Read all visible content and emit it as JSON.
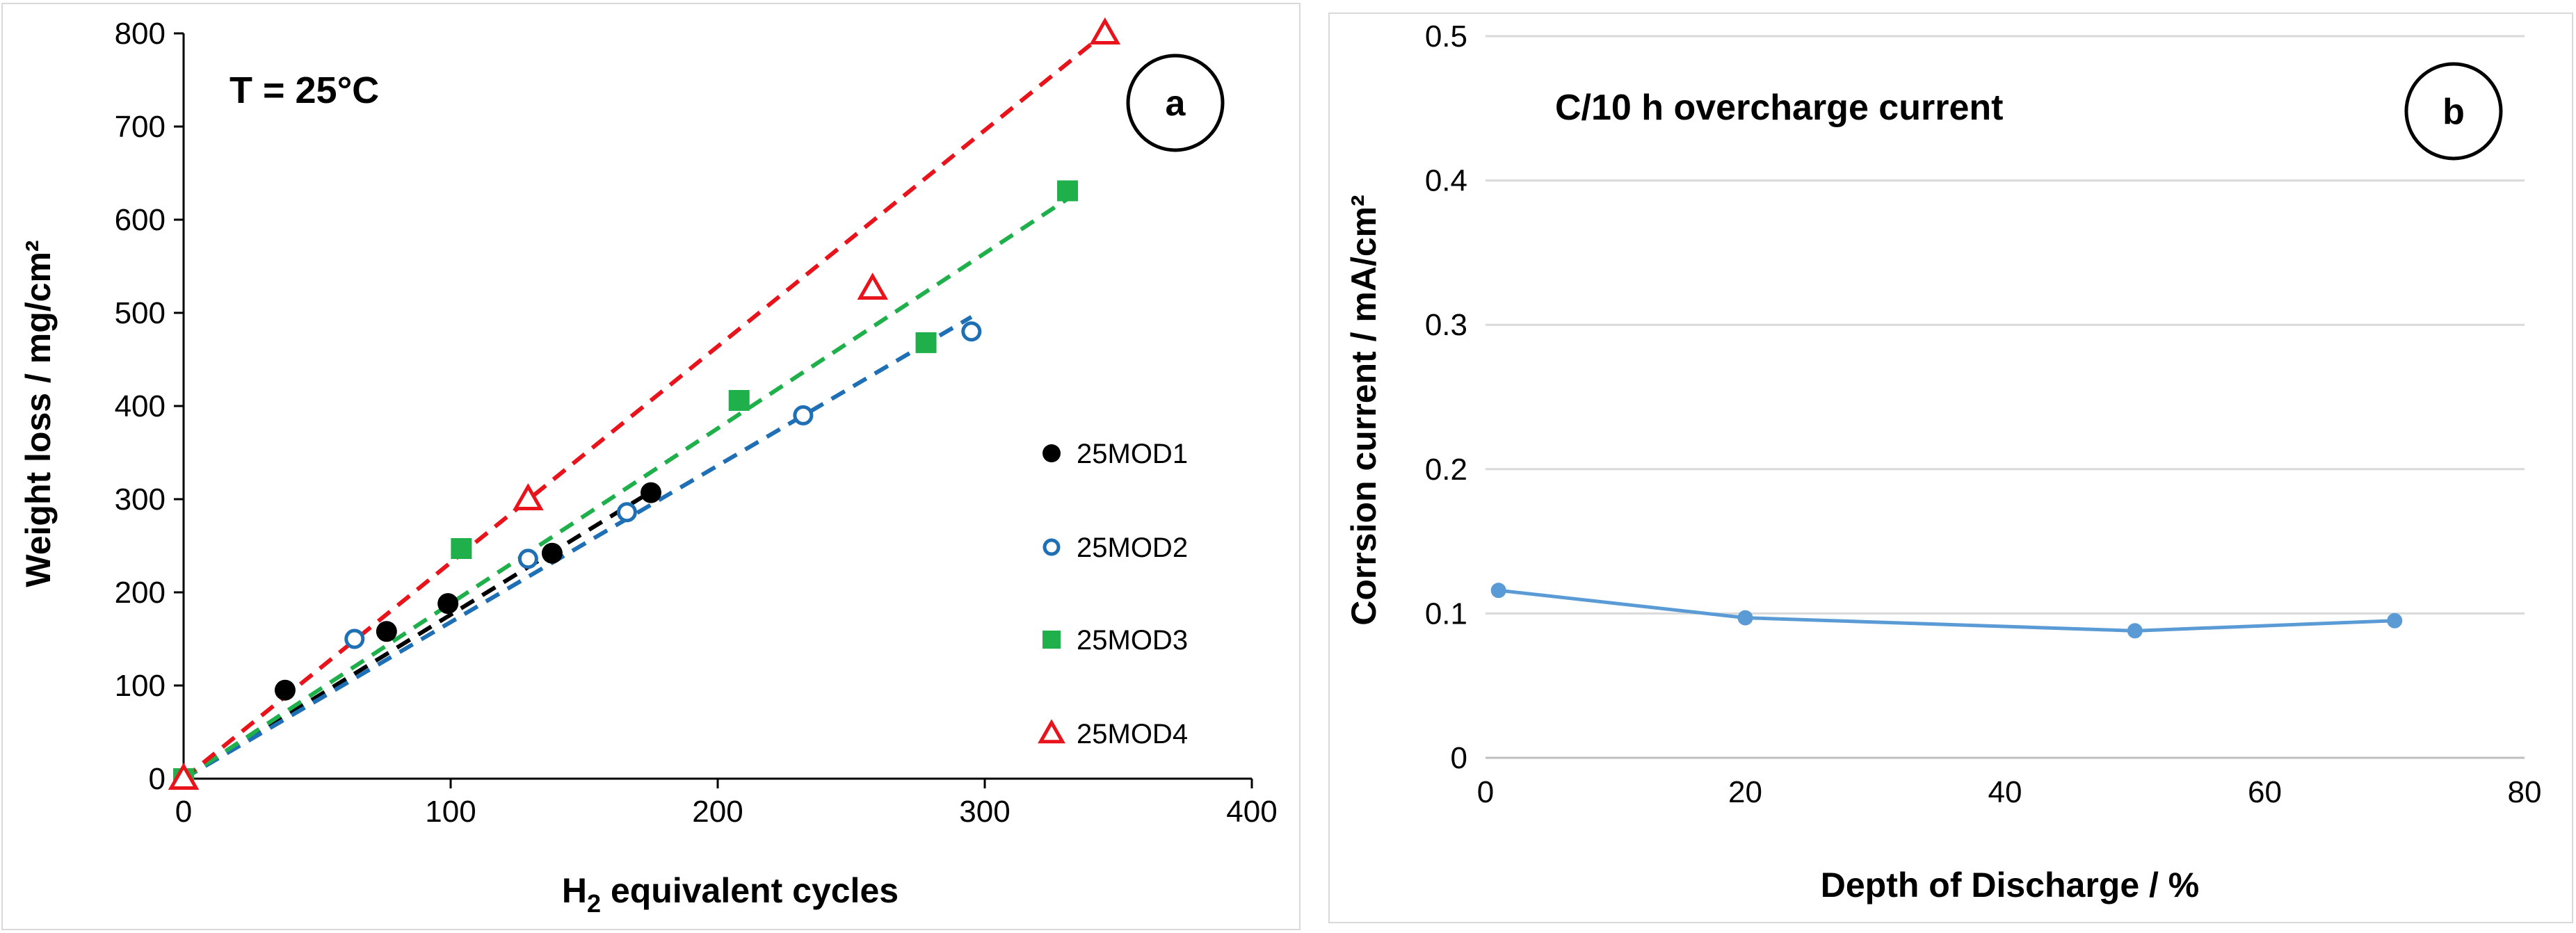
{
  "chart_data": [
    {
      "type": "scatter",
      "panel_label": "a",
      "annotation": "T = 25°C",
      "xlabel_main": "H",
      "xlabel_sub": "2",
      "xlabel_rest": " equivalent cycles",
      "ylabel": "Weight loss / mg/cm²",
      "xlim": [
        0,
        400
      ],
      "ylim": [
        0,
        800
      ],
      "xticks": [
        0,
        100,
        200,
        300,
        400
      ],
      "yticks": [
        0,
        100,
        200,
        300,
        400,
        500,
        600,
        700,
        800
      ],
      "legend_position": "right",
      "series": [
        {
          "name": "25MOD1",
          "marker": "filled-circle",
          "color": "#000000",
          "points": [
            [
              0,
              0
            ],
            [
              38,
              95
            ],
            [
              76,
              158
            ],
            [
              99,
              188
            ],
            [
              138,
              242
            ],
            [
              175,
              307
            ]
          ],
          "trend": {
            "x_end": 175,
            "slope": 1.76
          }
        },
        {
          "name": "25MOD2",
          "marker": "open-circle",
          "color": "#1f6fb5",
          "points": [
            [
              0,
              0
            ],
            [
              64,
              150
            ],
            [
              129,
              236
            ],
            [
              166,
              286
            ],
            [
              232,
              390
            ],
            [
              295,
              480
            ]
          ],
          "trend": {
            "x_end": 295,
            "slope": 1.68
          }
        },
        {
          "name": "25MOD3",
          "marker": "filled-square",
          "color": "#1fb04c",
          "points": [
            [
              0,
              0
            ],
            [
              104,
              247
            ],
            [
              208,
              406
            ],
            [
              278,
              468
            ],
            [
              331,
              631
            ]
          ],
          "trend": {
            "x_end": 331,
            "slope": 1.88
          }
        },
        {
          "name": "25MOD4",
          "marker": "open-triangle",
          "color": "#e8131b",
          "points": [
            [
              0,
              0
            ],
            [
              129,
              300
            ],
            [
              258,
              526
            ],
            [
              345,
              800
            ]
          ],
          "trend": {
            "x_end": 345,
            "slope": 2.32
          }
        }
      ]
    },
    {
      "type": "line",
      "panel_label": "b",
      "annotation": "C/10 h overcharge current",
      "xlabel": "Depth of Discharge / %",
      "ylabel": "Corrsion current / mA/cm²",
      "xlim": [
        0,
        80
      ],
      "ylim": [
        0,
        0.5
      ],
      "xticks": [
        0,
        20,
        40,
        60,
        80
      ],
      "yticks": [
        "0",
        "0.1",
        "0.2",
        "0.3",
        "0.4",
        "0.5"
      ],
      "grid": true,
      "series": [
        {
          "name": "corrosion",
          "color": "#5b9bd5",
          "x": [
            1,
            20,
            50,
            70
          ],
          "y": [
            0.116,
            0.097,
            0.088,
            0.095
          ]
        }
      ]
    }
  ]
}
